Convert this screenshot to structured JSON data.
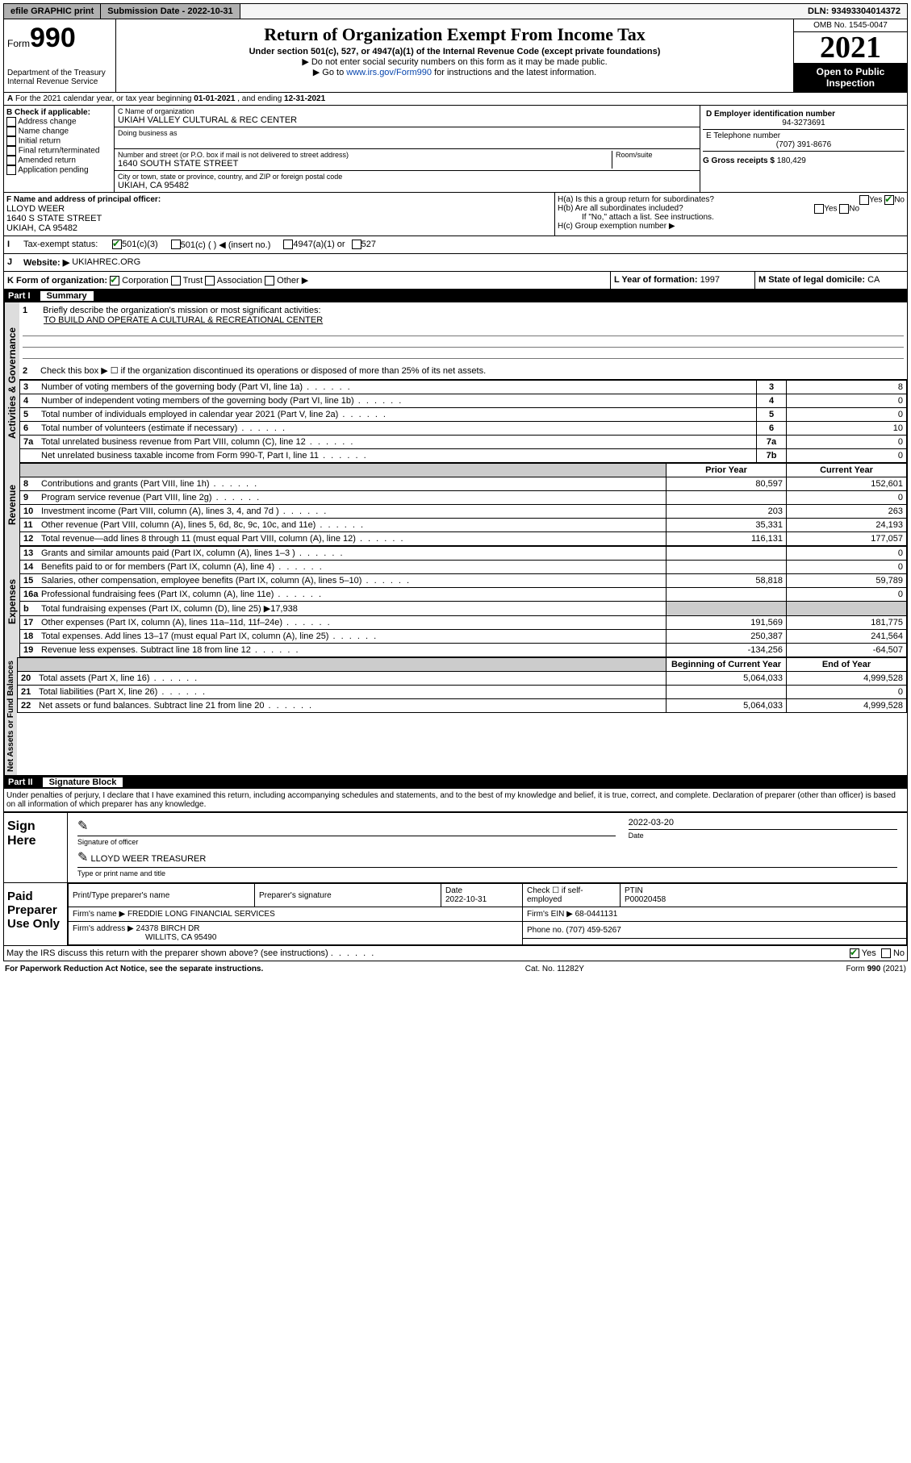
{
  "topbar": {
    "efile": "efile GRAPHIC print",
    "submission_label": "Submission Date - ",
    "submission_date": "2022-10-31",
    "dln_label": "DLN: ",
    "dln": "93493304014372"
  },
  "header": {
    "form_word": "Form",
    "form_no": "990",
    "dept": "Department of the Treasury\nInternal Revenue Service",
    "title": "Return of Organization Exempt From Income Tax",
    "sub1": "Under section 501(c), 527, or 4947(a)(1) of the Internal Revenue Code (except private foundations)",
    "sub2": "▶ Do not enter social security numbers on this form as it may be made public.",
    "sub3_pre": "▶ Go to ",
    "sub3_link": "www.irs.gov/Form990",
    "sub3_post": " for instructions and the latest information.",
    "omb": "OMB No. 1545-0047",
    "year": "2021",
    "open": "Open to Public Inspection"
  },
  "A": {
    "text": "For the 2021 calendar year, or tax year beginning ",
    "begin": "01-01-2021",
    "mid": " , and ending ",
    "end": "12-31-2021"
  },
  "B": {
    "title": "B Check if applicable:",
    "items": [
      "Address change",
      "Name change",
      "Initial return",
      "Final return/terminated",
      "Amended return",
      "Application pending"
    ]
  },
  "C": {
    "name_lbl": "C Name of organization",
    "name": "UKIAH VALLEY CULTURAL & REC CENTER",
    "dba_lbl": "Doing business as",
    "addr_lbl": "Number and street (or P.O. box if mail is not delivered to street address)",
    "room_lbl": "Room/suite",
    "addr": "1640 SOUTH STATE STREET",
    "city_lbl": "City or town, state or province, country, and ZIP or foreign postal code",
    "city": "UKIAH, CA  95482"
  },
  "D": {
    "lbl": "D Employer identification number",
    "val": "94-3273691"
  },
  "E": {
    "lbl": "E Telephone number",
    "val": "(707) 391-8676"
  },
  "G": {
    "lbl": "G Gross receipts $ ",
    "val": "180,429"
  },
  "F": {
    "lbl": "F  Name and address of principal officer:",
    "name": "LLOYD WEER",
    "addr1": "1640 S STATE STREET",
    "addr2": "UKIAH, CA  95482"
  },
  "H": {
    "a": "H(a)  Is this a group return for subordinates?",
    "b": "H(b)  Are all subordinates included?",
    "b_note": "If \"No,\" attach a list. See instructions.",
    "c": "H(c)  Group exemption number ▶",
    "yes": "Yes",
    "no": "No"
  },
  "I": {
    "lbl": "Tax-exempt status:",
    "o1": "501(c)(3)",
    "o2": "501(c) (  ) ◀ (insert no.)",
    "o3": "4947(a)(1) or",
    "o4": "527"
  },
  "J": {
    "lbl": "Website: ▶",
    "val": "UKIAHREC.ORG"
  },
  "K": {
    "lbl": "K Form of organization:",
    "o1": "Corporation",
    "o2": "Trust",
    "o3": "Association",
    "o4": "Other ▶"
  },
  "L": {
    "lbl": "L Year of formation: ",
    "val": "1997"
  },
  "M": {
    "lbl": "M State of legal domicile: ",
    "val": "CA"
  },
  "part1": {
    "num": "Part I",
    "title": "Summary"
  },
  "summary": {
    "sections": [
      "Activities & Governance",
      "Revenue",
      "Expenses",
      "Net Assets or Fund Balances"
    ],
    "q1": "Briefly describe the organization's mission or most significant activities:",
    "q1a": "TO BUILD AND OPERATE A CULTURAL & RECREATIONAL CENTER",
    "q2": "Check this box ▶ ☐  if the organization discontinued its operations or disposed of more than 25% of its net assets.",
    "hdr_prior": "Prior Year",
    "hdr_curr": "Current Year",
    "hdr_boy": "Beginning of Current Year",
    "hdr_eoy": "End of Year",
    "rows_ag": [
      {
        "n": "3",
        "d": "Number of voting members of the governing body (Part VI, line 1a)",
        "l": "3",
        "v": "8"
      },
      {
        "n": "4",
        "d": "Number of independent voting members of the governing body (Part VI, line 1b)",
        "l": "4",
        "v": "0"
      },
      {
        "n": "5",
        "d": "Total number of individuals employed in calendar year 2021 (Part V, line 2a)",
        "l": "5",
        "v": "0"
      },
      {
        "n": "6",
        "d": "Total number of volunteers (estimate if necessary)",
        "l": "6",
        "v": "10"
      },
      {
        "n": "7a",
        "d": "Total unrelated business revenue from Part VIII, column (C), line 12",
        "l": "7a",
        "v": "0"
      },
      {
        "n": "",
        "d": "Net unrelated business taxable income from Form 990-T, Part I, line 11",
        "l": "7b",
        "v": "0"
      }
    ],
    "rows_rev": [
      {
        "n": "8",
        "d": "Contributions and grants (Part VIII, line 1h)",
        "p": "80,597",
        "c": "152,601"
      },
      {
        "n": "9",
        "d": "Program service revenue (Part VIII, line 2g)",
        "p": "",
        "c": "0"
      },
      {
        "n": "10",
        "d": "Investment income (Part VIII, column (A), lines 3, 4, and 7d )",
        "p": "203",
        "c": "263"
      },
      {
        "n": "11",
        "d": "Other revenue (Part VIII, column (A), lines 5, 6d, 8c, 9c, 10c, and 11e)",
        "p": "35,331",
        "c": "24,193"
      },
      {
        "n": "12",
        "d": "Total revenue—add lines 8 through 11 (must equal Part VIII, column (A), line 12)",
        "p": "116,131",
        "c": "177,057"
      }
    ],
    "rows_exp": [
      {
        "n": "13",
        "d": "Grants and similar amounts paid (Part IX, column (A), lines 1–3 )",
        "p": "",
        "c": "0"
      },
      {
        "n": "14",
        "d": "Benefits paid to or for members (Part IX, column (A), line 4)",
        "p": "",
        "c": "0"
      },
      {
        "n": "15",
        "d": "Salaries, other compensation, employee benefits (Part IX, column (A), lines 5–10)",
        "p": "58,818",
        "c": "59,789"
      },
      {
        "n": "16a",
        "d": "Professional fundraising fees (Part IX, column (A), line 11e)",
        "p": "",
        "c": "0"
      },
      {
        "n": "b",
        "d": "Total fundraising expenses (Part IX, column (D), line 25) ▶17,938",
        "grey": true
      },
      {
        "n": "17",
        "d": "Other expenses (Part IX, column (A), lines 11a–11d, 11f–24e)",
        "p": "191,569",
        "c": "181,775"
      },
      {
        "n": "18",
        "d": "Total expenses. Add lines 13–17 (must equal Part IX, column (A), line 25)",
        "p": "250,387",
        "c": "241,564"
      },
      {
        "n": "19",
        "d": "Revenue less expenses. Subtract line 18 from line 12",
        "p": "-134,256",
        "c": "-64,507"
      }
    ],
    "rows_net": [
      {
        "n": "20",
        "d": "Total assets (Part X, line 16)",
        "p": "5,064,033",
        "c": "4,999,528"
      },
      {
        "n": "21",
        "d": "Total liabilities (Part X, line 26)",
        "p": "",
        "c": "0"
      },
      {
        "n": "22",
        "d": "Net assets or fund balances. Subtract line 21 from line 20",
        "p": "5,064,033",
        "c": "4,999,528"
      }
    ]
  },
  "part2": {
    "num": "Part II",
    "title": "Signature Block"
  },
  "perjury": "Under penalties of perjury, I declare that I have examined this return, including accompanying schedules and statements, and to the best of my knowledge and belief, it is true, correct, and complete. Declaration of preparer (other than officer) is based on all information of which preparer has any knowledge.",
  "sign": {
    "here": "Sign Here",
    "sig_lbl": "Signature of officer",
    "date": "2022-03-20",
    "date_lbl": "Date",
    "name": "LLOYD WEER TREASURER",
    "name_lbl": "Type or print name and title"
  },
  "prep": {
    "left": "Paid Preparer Use Only",
    "c1": "Print/Type preparer's name",
    "c2": "Preparer's signature",
    "c3": "Date",
    "c3v": "2022-10-31",
    "c4": "Check ☐ if self-employed",
    "c5": "PTIN",
    "c5v": "P00020458",
    "firm_lbl": "Firm's name   ▶",
    "firm": "FREDDIE LONG FINANCIAL SERVICES",
    "ein_lbl": "Firm's EIN ▶",
    "ein": "68-0441131",
    "addr_lbl": "Firm's address ▶",
    "addr1": "24378 BIRCH DR",
    "addr2": "WILLITS, CA  95490",
    "phone_lbl": "Phone no. ",
    "phone": "(707) 459-5267"
  },
  "discuss": {
    "q": "May the IRS discuss this return with the preparer shown above? (see instructions)",
    "yes": "Yes",
    "no": "No"
  },
  "footer": {
    "l": "For Paperwork Reduction Act Notice, see the separate instructions.",
    "m": "Cat. No. 11282Y",
    "r": "Form 990 (2021)"
  }
}
